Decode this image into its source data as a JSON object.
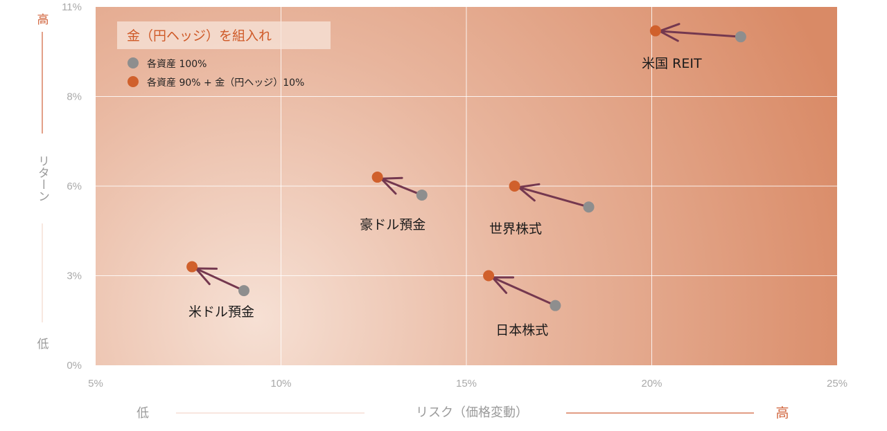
{
  "colors": {
    "gold_hedged": "#d0602c",
    "asset_100": "#8e8e8e",
    "arrow": "#74384f",
    "accent": "#d0623a"
  },
  "legend": {
    "title": "金（円ヘッジ）を組入れ",
    "items": [
      {
        "label": "各資産 100%",
        "color": "#8e8e8e"
      },
      {
        "label": "各資産 90% + 金（円ヘッジ）10%",
        "color": "#d0602c"
      }
    ]
  },
  "axis": {
    "y_high": "高",
    "y_title": "リターン",
    "y_low": "低",
    "x_low": "低",
    "x_title": "リスク（価格変動）",
    "x_high": "高"
  },
  "chart_data": {
    "type": "scatter",
    "title": "",
    "xlabel": "リスク（価格変動）",
    "ylabel": "リターン",
    "xlim": [
      5,
      25
    ],
    "x_ticks": [
      5,
      10,
      15,
      20,
      25
    ],
    "x_tick_labels": [
      "5%",
      "10%",
      "15%",
      "20%",
      "25%"
    ],
    "y_ticks": [
      0,
      3,
      6,
      8,
      11
    ],
    "y_tick_labels": [
      "0%",
      "3%",
      "6%",
      "8%",
      "11%"
    ],
    "grid": true,
    "legend_position": "top-left",
    "series": [
      {
        "name": "各資産 100%",
        "points": [
          {
            "asset": "米ドル預金",
            "x": 9.0,
            "y": 2.5
          },
          {
            "asset": "豪ドル預金",
            "x": 13.8,
            "y": 5.7
          },
          {
            "asset": "日本株式",
            "x": 17.4,
            "y": 2.0
          },
          {
            "asset": "世界株式",
            "x": 18.3,
            "y": 5.3
          },
          {
            "asset": "米国 REIT",
            "x": 22.4,
            "y": 10.0
          }
        ]
      },
      {
        "name": "各資産 90% + 金（円ヘッジ）10%",
        "points": [
          {
            "asset": "米ドル預金",
            "x": 7.6,
            "y": 3.3
          },
          {
            "asset": "豪ドル預金",
            "x": 12.6,
            "y": 6.2
          },
          {
            "asset": "日本株式",
            "x": 15.6,
            "y": 3.0
          },
          {
            "asset": "世界株式",
            "x": 16.3,
            "y": 6.0
          },
          {
            "asset": "米国 REIT",
            "x": 20.1,
            "y": 10.2
          }
        ]
      }
    ],
    "point_labels": [
      "米ドル預金",
      "豪ドル預金",
      "日本株式",
      "世界株式",
      "米国 REIT"
    ]
  }
}
